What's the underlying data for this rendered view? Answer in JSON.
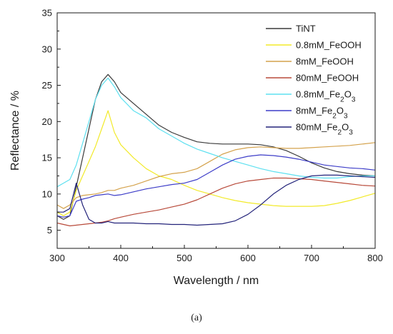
{
  "panel_label": "(a)",
  "chart_data": {
    "type": "line",
    "xlabel": "Wavelength / nm",
    "ylabel": "Reflectance / %",
    "xlim": [
      300,
      800
    ],
    "ylim": [
      2.5,
      35
    ],
    "x_ticks": [
      300,
      400,
      500,
      600,
      700,
      800
    ],
    "y_ticks": [
      5,
      10,
      15,
      20,
      25,
      30,
      35
    ],
    "grid": false,
    "legend_position": "top-right",
    "x": [
      300,
      310,
      320,
      330,
      340,
      350,
      360,
      370,
      380,
      390,
      400,
      420,
      440,
      460,
      480,
      500,
      520,
      540,
      560,
      580,
      600,
      620,
      640,
      660,
      680,
      700,
      720,
      740,
      760,
      780,
      800
    ],
    "series": [
      {
        "name": "TiNT",
        "sub": "",
        "color": "#3a3a3a",
        "values": [
          7,
          6.5,
          7,
          11,
          15,
          19,
          23,
          25.5,
          26.5,
          25.5,
          24,
          22.5,
          21,
          19.5,
          18.5,
          17.8,
          17.2,
          17.0,
          16.9,
          16.9,
          16.9,
          16.8,
          16.5,
          16.0,
          15.2,
          14.3,
          13.6,
          13.1,
          12.8,
          12.6,
          12.5
        ]
      },
      {
        "name": "0.8mM_FeOOH",
        "sub": "",
        "color": "#f2ea2a",
        "values": [
          7.5,
          7,
          7.5,
          10.5,
          12.5,
          14.5,
          16.5,
          19,
          21.5,
          18.5,
          16.8,
          15,
          13.5,
          12.5,
          12,
          11.2,
          10.5,
          10,
          9.5,
          9.1,
          8.8,
          8.6,
          8.4,
          8.3,
          8.3,
          8.3,
          8.4,
          8.7,
          9.1,
          9.6,
          10.1
        ]
      },
      {
        "name": "8mM_FeOOH",
        "sub": "",
        "color": "#d4a24c",
        "values": [
          8.5,
          8,
          8.5,
          9.5,
          9.8,
          9.9,
          10,
          10.2,
          10.5,
          10.5,
          10.8,
          11.2,
          11.8,
          12.4,
          12.8,
          13,
          13.5,
          14.5,
          15.5,
          16.1,
          16.4,
          16.5,
          16.4,
          16.3,
          16.3,
          16.4,
          16.5,
          16.6,
          16.7,
          16.9,
          17.1
        ]
      },
      {
        "name": "80mM_FeOOH",
        "sub": "",
        "color": "#b84a3a",
        "values": [
          6,
          5.8,
          5.6,
          5.7,
          5.8,
          5.9,
          6,
          6.1,
          6.3,
          6.6,
          6.8,
          7.2,
          7.5,
          7.8,
          8.2,
          8.6,
          9.2,
          10,
          10.8,
          11.4,
          11.8,
          12,
          12.2,
          12.2,
          12.1,
          12,
          11.8,
          11.6,
          11.4,
          11.2,
          11.1
        ]
      },
      {
        "name": "0.8mM_Fe",
        "sub": "2",
        "tail": "O",
        "sub2": "3",
        "color": "#5ee0f0",
        "values": [
          11,
          11.5,
          12,
          14,
          17,
          20,
          23,
          25,
          26,
          24.8,
          23.3,
          21.5,
          20.5,
          19,
          18,
          17,
          16.2,
          15.6,
          15,
          14.5,
          14,
          13.5,
          13.1,
          12.8,
          12.5,
          12.3,
          12.2,
          12.2,
          12.4,
          12.5,
          12.5
        ]
      },
      {
        "name": "8mM_Fe",
        "sub": "2",
        "tail": "O",
        "sub2": "3",
        "color": "#3d3dc8",
        "values": [
          7,
          6.8,
          7,
          9,
          9.3,
          9.5,
          9.8,
          9.9,
          10,
          9.8,
          9.9,
          10.3,
          10.7,
          11,
          11.3,
          11.5,
          12,
          13,
          14,
          14.8,
          15.2,
          15.4,
          15.3,
          15.1,
          14.8,
          14.4,
          14,
          13.8,
          13.6,
          13.5,
          13.3
        ]
      },
      {
        "name": "80mM_Fe",
        "sub": "2",
        "tail": "O",
        "sub2": "3",
        "color": "#23237a",
        "values": [
          7.5,
          7.5,
          8,
          11.5,
          8.5,
          6.5,
          6,
          6,
          6.2,
          6,
          6,
          6,
          5.9,
          5.9,
          5.8,
          5.8,
          5.7,
          5.8,
          5.9,
          6.3,
          7.2,
          8.5,
          10,
          11.2,
          12,
          12.5,
          12.6,
          12.6,
          12.5,
          12.4,
          12.3
        ]
      }
    ]
  }
}
